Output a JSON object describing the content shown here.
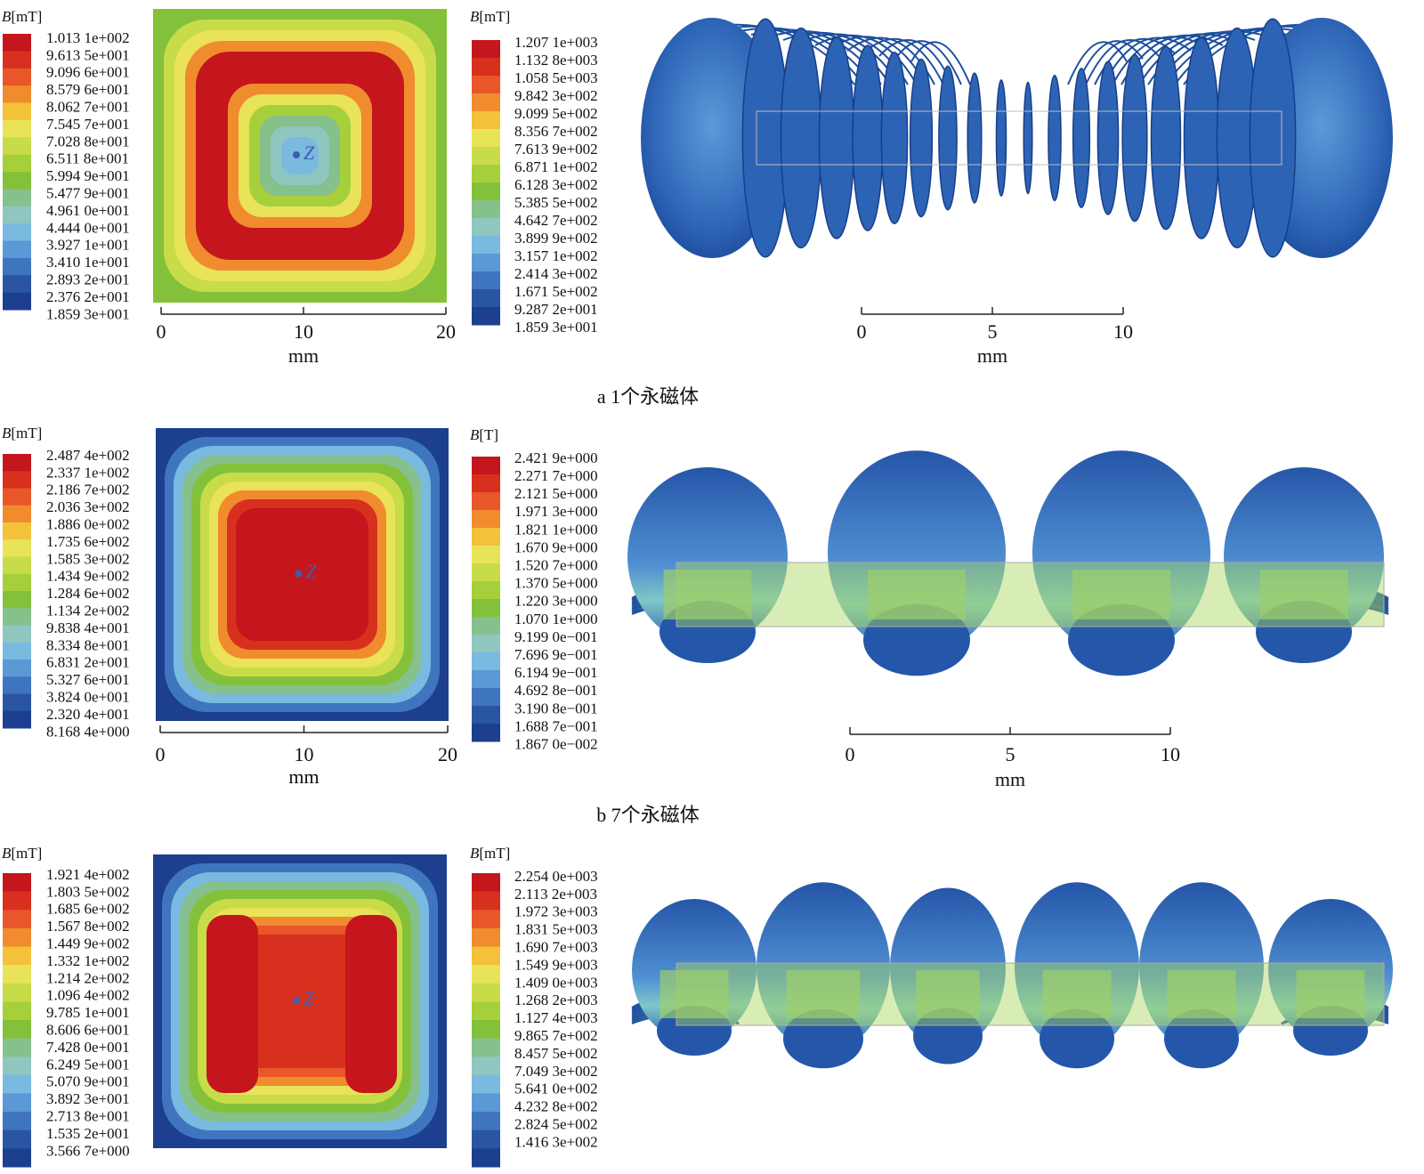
{
  "panels": [
    {
      "legend_left": {
        "symbol": "B",
        "unit": "[mT]",
        "labels": [
          "1.013 1e+002",
          "9.613 5e+001",
          "9.096 6e+001",
          "8.579 6e+001",
          "8.062 7e+001",
          "7.545 7e+001",
          "7.028 8e+001",
          "6.511 8e+001",
          "5.994 9e+001",
          "5.477 9e+001",
          "4.961 0e+001",
          "4.444 0e+001",
          "3.927 1e+001",
          "3.410 1e+001",
          "2.893 2e+001",
          "2.376 2e+001",
          "1.859 3e+001"
        ]
      },
      "marker": "Z",
      "legend_right": {
        "symbol": "B",
        "unit": "[mT]",
        "labels": [
          "1.207 1e+003",
          "1.132 8e+003",
          "1.058 5e+003",
          "9.842 3e+002",
          "9.099 5e+002",
          "8.356 7e+002",
          "7.613 9e+002",
          "6.871 1e+002",
          "6.128 3e+002",
          "5.385 5e+002",
          "4.642 7e+002",
          "3.899 9e+002",
          "3.157 1e+002",
          "2.414 3e+002",
          "1.671 5e+002",
          "9.287 2e+001",
          "1.859 3e+001"
        ]
      },
      "scale_left": {
        "ticks": [
          0,
          10,
          20
        ],
        "unit": "mm"
      },
      "scale_right": {
        "ticks": [
          0,
          5,
          10
        ],
        "unit": "mm"
      },
      "caption": "a  1个永磁体"
    },
    {
      "legend_left": {
        "symbol": "B",
        "unit": "[mT]",
        "labels": [
          "2.487 4e+002",
          "2.337 1e+002",
          "2.186 7e+002",
          "2.036 3e+002",
          "1.886 0e+002",
          "1.735 6e+002",
          "1.585 3e+002",
          "1.434 9e+002",
          "1.284 6e+002",
          "1.134 2e+002",
          "9.838 4e+001",
          "8.334 8e+001",
          "6.831 2e+001",
          "5.327 6e+001",
          "3.824 0e+001",
          "2.320 4e+001",
          "8.168 4e+000"
        ]
      },
      "marker": "Z",
      "legend_right": {
        "symbol": "B",
        "unit": "[T]",
        "labels": [
          "2.421 9e+000",
          "2.271 7e+000",
          "2.121 5e+000",
          "1.971 3e+000",
          "1.821 1e+000",
          "1.670 9e+000",
          "1.520 7e+000",
          "1.370 5e+000",
          "1.220 3e+000",
          "1.070 1e+000",
          "9.199 0e−001",
          "7.696 9e−001",
          "6.194 9e−001",
          "4.692 8e−001",
          "3.190 8e−001",
          "1.688 7e−001",
          "1.867 0e−002"
        ]
      },
      "scale_left": {
        "ticks": [
          0,
          10,
          20
        ],
        "unit": "mm"
      },
      "scale_right": {
        "ticks": [
          0,
          5,
          10
        ],
        "unit": "mm"
      },
      "caption": "b  7个永磁体"
    },
    {
      "legend_left": {
        "symbol": "B",
        "unit": "[mT]",
        "labels": [
          "1.921 4e+002",
          "1.803 5e+002",
          "1.685 6e+002",
          "1.567 8e+002",
          "1.449 9e+002",
          "1.332 1e+002",
          "1.214 2e+002",
          "1.096 4e+002",
          "9.785 1e+001",
          "8.606 6e+001",
          "7.428 0e+001",
          "6.249 5e+001",
          "5.070 9e+001",
          "3.892 3e+001",
          "2.713 8e+001",
          "1.535 2e+001",
          "3.566 7e+000"
        ]
      },
      "marker": "Z",
      "legend_right": {
        "symbol": "B",
        "unit": "[mT]",
        "labels": [
          "2.254 0e+003",
          "2.113 2e+003",
          "1.972 3e+003",
          "1.831 5e+003",
          "1.690 7e+003",
          "1.549 9e+003",
          "1.409 0e+003",
          "1.268 2e+003",
          "1.127 4e+003",
          "9.865 7e+002",
          "8.457 5e+002",
          "7.049 3e+002",
          "5.641 0e+002",
          "4.232 8e+002",
          "2.824 5e+002",
          "1.416 3e+002"
        ]
      }
    }
  ]
}
